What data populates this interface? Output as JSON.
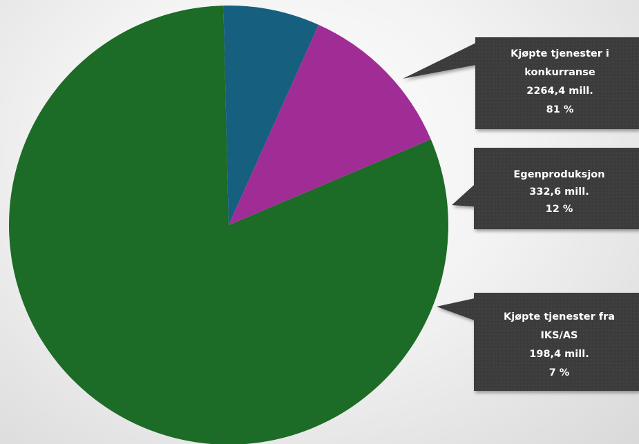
{
  "chart_data": {
    "type": "pie",
    "title": "",
    "series": [
      {
        "name": "Kjøpte tjenester i konkurranse",
        "value": 2264.4,
        "value_label": "2264,4 mill.",
        "percent_label": "81 %",
        "color": "#1c6b26",
        "lines": [
          "Kjøpte tjenester i",
          "konkurranse",
          "2264,4 mill.",
          "81 %"
        ]
      },
      {
        "name": "Egenproduksjon",
        "value": 332.6,
        "value_label": "332,6 mill.",
        "percent_label": "12 %",
        "color": "#a02c96",
        "lines": [
          "Egenproduksjon",
          "332,6 mill.",
          "12 %"
        ]
      },
      {
        "name": "Kjøpte tjenester fra IKS/AS",
        "value": 198.4,
        "value_label": "198,4 mill.",
        "percent_label": "7 %",
        "color": "#175f7f",
        "lines": [
          "Kjøpte tjenester fra",
          "IKS/AS",
          "198,4 mill.",
          "7 %"
        ]
      }
    ],
    "legend": "callouts-right",
    "callout_color": "#3a3a3a"
  }
}
